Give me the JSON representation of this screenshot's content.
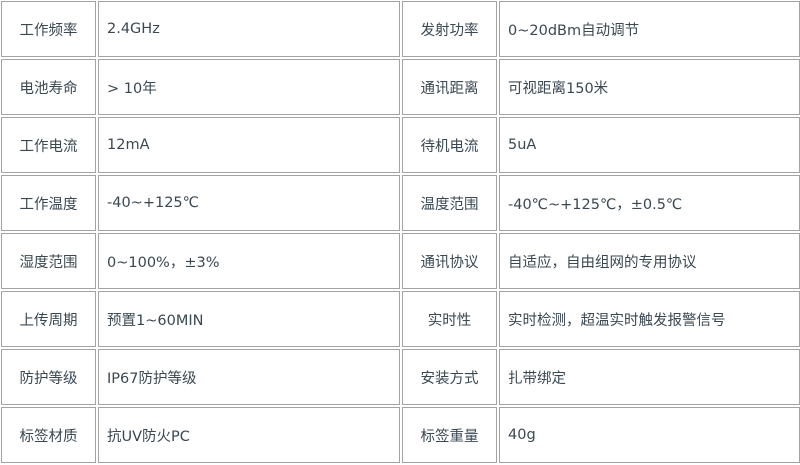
{
  "rows": [
    {
      "label1": "工作频率",
      "value1": "2.4GHz",
      "label2": "发射功率",
      "value2": "0~20dBm自动调节"
    },
    {
      "label1": "电池寿命",
      "value1": "> 10年",
      "label2": "通讯距离",
      "value2": "可视距离150米"
    },
    {
      "label1": "工作电流",
      "value1": "12mA",
      "label2": "待机电流",
      "value2": "5uA"
    },
    {
      "label1": "工作温度",
      "value1": "-40~+125℃",
      "label2": "温度范围",
      "value2": "-40℃~+125℃，±0.5℃"
    },
    {
      "label1": "湿度范围",
      "value1": "0~100%，±3%",
      "label2": "通讯协议",
      "value2": "自适应，自由组网的专用协议"
    },
    {
      "label1": "上传周期",
      "value1": "预置1~60MIN",
      "label2": "实时性",
      "value2": "实时检测，超温实时触发报警信号"
    },
    {
      "label1": "防护等级",
      "value1": "IP67防护等级",
      "label2": "安装方式",
      "value2": "扎带绑定"
    },
    {
      "label1": "标签材质",
      "value1": "抗UV防火PC",
      "label2": "标签重量",
      "value2": "40g"
    }
  ]
}
